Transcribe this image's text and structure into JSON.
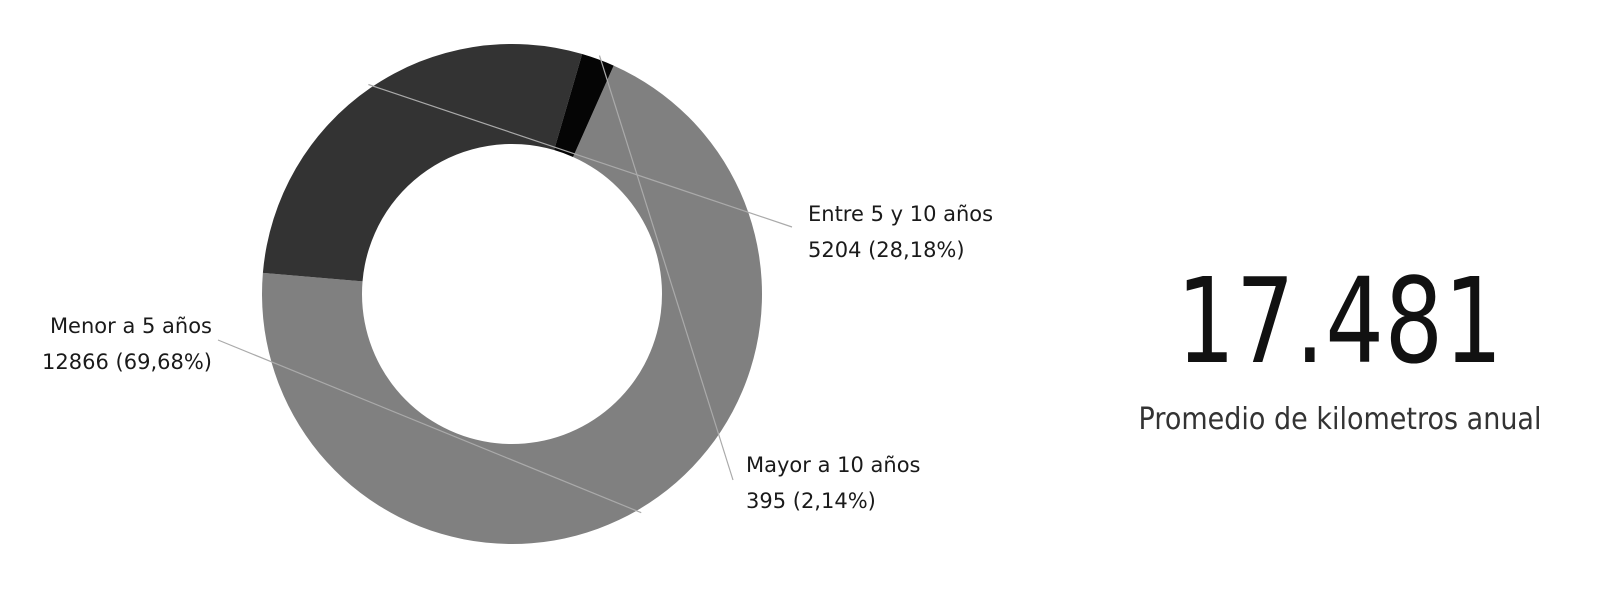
{
  "chart_data": {
    "type": "pie",
    "categories": [
      "Menor a 5 años",
      "Entre 5 y 10 años",
      "Mayor a 10 años"
    ],
    "values": [
      12866,
      5204,
      395
    ],
    "data_labels": [
      "12866 (69,68%)",
      "5204 (28,18%)",
      "395 (2,14%)"
    ],
    "colors": [
      "#808080",
      "#333333",
      "#050505"
    ],
    "donut": true
  },
  "card": {
    "value": "17.481",
    "label": "Promedio de kilometros anual"
  }
}
